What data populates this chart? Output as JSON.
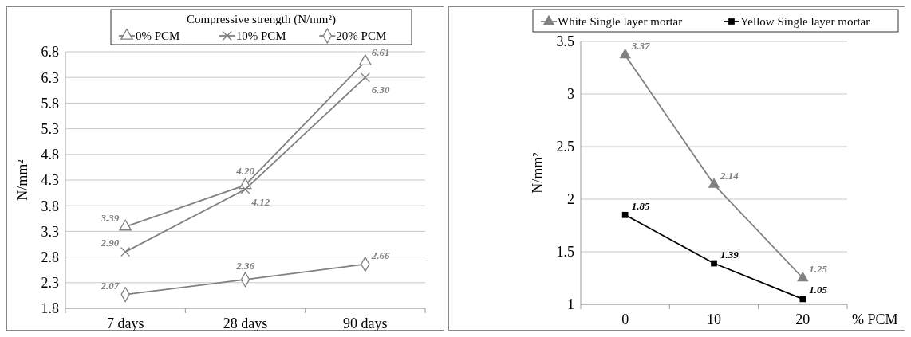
{
  "chart_data": [
    {
      "type": "line",
      "categories": [
        "7 days",
        "28 days",
        "90 days"
      ],
      "ylabel": "N/mm²",
      "legend_title": "Compressive strength (N/mm²)",
      "legend": "top",
      "grid": "y",
      "ylim": [
        1.8,
        6.8
      ],
      "yticks": [
        1.8,
        2.3,
        2.8,
        3.3,
        3.8,
        4.3,
        4.8,
        5.3,
        5.8,
        6.3,
        6.8
      ],
      "series": [
        {
          "name": "0% PCM",
          "color": "#808080",
          "marker": "triangle",
          "values": [
            3.39,
            4.2,
            6.61
          ],
          "value_labels": [
            "3.39",
            "4.20",
            "6.61"
          ]
        },
        {
          "name": "10% PCM",
          "color": "#808080",
          "marker": "cross",
          "values": [
            2.9,
            4.12,
            6.3
          ],
          "value_labels": [
            "2.90",
            "4.12",
            "6.30"
          ]
        },
        {
          "name": "20% PCM",
          "color": "#808080",
          "marker": "diamond",
          "values": [
            2.07,
            2.36,
            2.66
          ],
          "value_labels": [
            "2.07",
            "2.36",
            "2.66"
          ]
        }
      ]
    },
    {
      "type": "line",
      "categories": [
        "0",
        "10",
        "20"
      ],
      "xlabel": "% PCM",
      "ylabel": "N/mm²",
      "legend": "top",
      "grid": "y",
      "data_labels": true,
      "ylim": [
        1,
        3.5
      ],
      "yticks": [
        1,
        1.5,
        2,
        2.5,
        3,
        3.5
      ],
      "series": [
        {
          "name": "White Single layer mortar",
          "color": "#808080",
          "marker": "triangle",
          "values": [
            3.37,
            2.14,
            1.25
          ]
        },
        {
          "name": "Yellow Single layer mortar",
          "color": "#000000",
          "marker": "square",
          "values": [
            1.85,
            1.39,
            1.05
          ]
        }
      ]
    }
  ]
}
